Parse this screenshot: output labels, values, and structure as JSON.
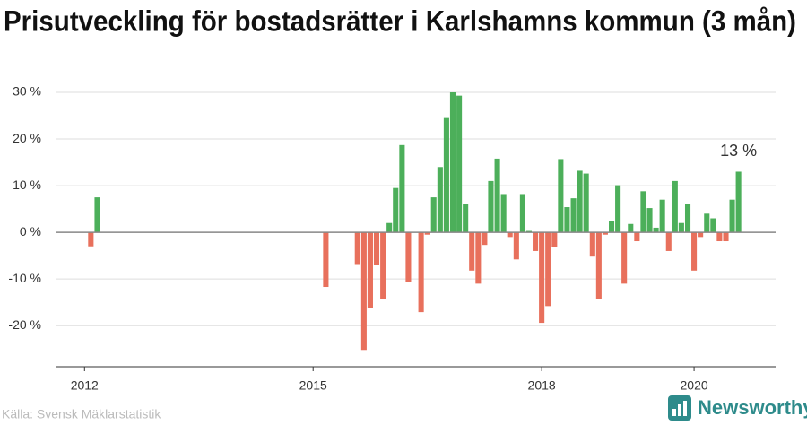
{
  "chart_data": {
    "type": "bar",
    "title": "Prisutveckling för bostadsrätter i Karlshamns kommun (3 mån)",
    "source": "Källa: Svensk Mäklarstatistik",
    "brand": "Newsworthy",
    "colors": {
      "positive": "#4caf5a",
      "negative": "#e8705c"
    },
    "x": [
      2012.083,
      2012.167,
      2015.167,
      2015.583,
      2015.667,
      2015.75,
      2015.833,
      2015.917,
      2016.0,
      2016.083,
      2016.167,
      2016.25,
      2016.417,
      2016.5,
      2016.583,
      2016.667,
      2016.75,
      2016.833,
      2016.917,
      2017.0,
      2017.083,
      2017.167,
      2017.25,
      2017.333,
      2017.417,
      2017.5,
      2017.583,
      2017.667,
      2017.75,
      2017.833,
      2017.917,
      2018.0,
      2018.083,
      2018.167,
      2018.25,
      2018.333,
      2018.417,
      2018.5,
      2018.583,
      2018.667,
      2018.75,
      2018.833,
      2018.917,
      2019.0,
      2019.083,
      2019.167,
      2019.25,
      2019.333,
      2019.417,
      2019.5,
      2019.583,
      2019.667,
      2019.75,
      2019.833,
      2019.917,
      2020.0,
      2020.083,
      2020.167,
      2020.25,
      2020.333,
      2020.417,
      2020.5,
      2020.583
    ],
    "values": [
      -3,
      7.5,
      -11.7,
      -6.8,
      -25.2,
      -16.2,
      -7,
      -14.2,
      2,
      9.5,
      18.7,
      -10.7,
      -17.1,
      -0.5,
      7.5,
      14,
      24.5,
      30,
      29.3,
      6,
      -8.2,
      -11,
      -2.7,
      11,
      15.8,
      8.2,
      -1,
      -5.8,
      8.2,
      0.3,
      -4,
      -19.4,
      -15.8,
      -3.2,
      15.7,
      5.4,
      7.3,
      13.2,
      12.6,
      -5.2,
      -14.2,
      -0.5,
      2.4,
      10.1,
      -11,
      1.8,
      -1.9,
      8.8,
      5.2,
      1,
      7,
      -4,
      11,
      2,
      6,
      -8.2,
      -1,
      4,
      3,
      -1.9,
      -1.9,
      7,
      13
    ],
    "value_labels": [
      null,
      null,
      null,
      null,
      null,
      null,
      null,
      null,
      null,
      null,
      null,
      null,
      null,
      null,
      null,
      null,
      null,
      null,
      null,
      null,
      null,
      null,
      null,
      null,
      null,
      null,
      null,
      null,
      null,
      null,
      null,
      null,
      null,
      null,
      null,
      null,
      null,
      null,
      null,
      null,
      null,
      null,
      null,
      null,
      null,
      null,
      null,
      null,
      null,
      null,
      null,
      null,
      null,
      null,
      null,
      null,
      null,
      null,
      null,
      null,
      null,
      null,
      "13 %"
    ],
    "xlim": [
      2011.62,
      2021.07
    ],
    "xticks": [
      2012,
      2015,
      2018,
      2020
    ],
    "ylim": [
      -28.8,
      32.5
    ],
    "yticks": [
      {
        "value": -20,
        "label": "-20 %"
      },
      {
        "value": -10,
        "label": "-10 %"
      },
      {
        "value": 0,
        "label": "0 %"
      },
      {
        "value": 10,
        "label": "10 %"
      },
      {
        "value": 20,
        "label": "20 %"
      },
      {
        "value": 30,
        "label": "30 %"
      }
    ],
    "grid": true
  }
}
